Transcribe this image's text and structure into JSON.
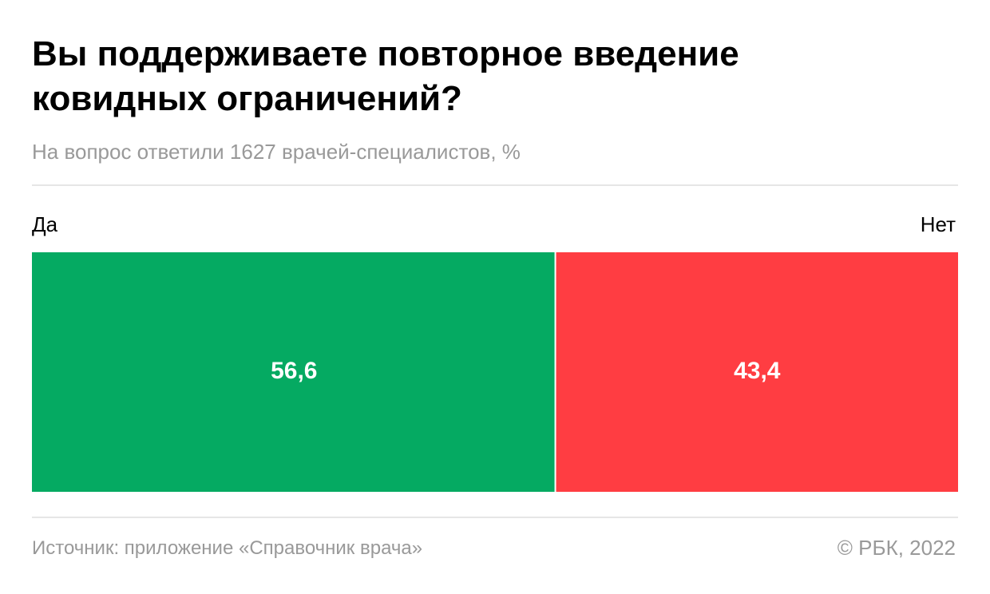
{
  "chart_data": {
    "type": "stacked_bar",
    "title": "Вы поддерживаете повторное введение ковидных ограничений?",
    "subtitle": "На вопрос ответили 1627 врачей-специалистов, %",
    "xlim": [
      0,
      100
    ],
    "series": [
      {
        "name": "Да",
        "color": "#05aa62",
        "values": [
          56.6
        ],
        "value_labels": [
          "56,6"
        ]
      },
      {
        "name": "Нет",
        "color": "#ff3d42",
        "values": [
          43.4
        ],
        "value_labels": [
          "43,4"
        ]
      }
    ],
    "source": "Источник: приложение «Справочник врача»",
    "copyright": "© РБК, 2022"
  }
}
